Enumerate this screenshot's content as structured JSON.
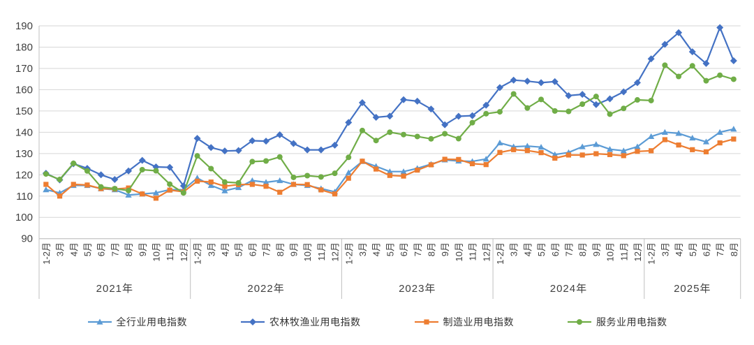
{
  "chart_data": {
    "type": "line",
    "title": "",
    "xlabel": "",
    "ylabel": "",
    "ylim": [
      90,
      190
    ],
    "yticks": [
      90,
      100,
      110,
      120,
      130,
      140,
      150,
      160,
      170,
      180,
      190
    ],
    "grid": "horizontal",
    "legend_position": "bottom",
    "years": [
      {
        "label": "2021年",
        "months": [
          "1-2月",
          "3月",
          "4月",
          "5月",
          "6月",
          "7月",
          "8月",
          "9月",
          "10月",
          "11月",
          "12月"
        ]
      },
      {
        "label": "2022年",
        "months": [
          "1-2月",
          "3月",
          "4月",
          "5月",
          "6月",
          "7月",
          "8月",
          "9月",
          "10月",
          "11月",
          "12月"
        ]
      },
      {
        "label": "2023年",
        "months": [
          "1-2月",
          "3月",
          "4月",
          "5月",
          "6月",
          "7月",
          "8月",
          "9月",
          "10月",
          "11月",
          "12月"
        ]
      },
      {
        "label": "2024年",
        "months": [
          "1-2月",
          "3月",
          "4月",
          "5月",
          "6月",
          "7月",
          "8月",
          "9月",
          "10月",
          "11月",
          "12月"
        ]
      },
      {
        "label": "2025年",
        "months": [
          "1-2月",
          "3月",
          "4月",
          "5月",
          "6月",
          "7月",
          "8月"
        ]
      }
    ],
    "series": [
      {
        "name": "全行业用电指数",
        "color": "#5B9BD5",
        "marker": "triangle",
        "values": [
          113,
          111.5,
          115,
          115,
          113.5,
          113,
          110.5,
          111,
          111.5,
          113,
          113,
          118.5,
          115,
          112.5,
          114,
          117.3,
          116.5,
          117.3,
          115.5,
          115,
          113.5,
          112,
          121,
          126.3,
          124,
          121.5,
          121.5,
          123,
          125,
          127,
          126.5,
          126.3,
          127.4,
          135,
          133.2,
          133.5,
          133,
          129.5,
          130.5,
          133.2,
          134.3,
          132,
          131.3,
          133.2,
          138,
          140,
          139.5,
          137.3,
          135.5,
          140,
          141.5
        ]
      },
      {
        "name": "农林牧渔业用电指数",
        "color": "#4472C4",
        "marker": "diamond",
        "values": [
          120.7,
          117.6,
          125.2,
          123,
          120,
          117.8,
          121.8,
          126.8,
          123.7,
          123.5,
          114.8,
          137.1,
          132.8,
          131.2,
          131.4,
          136,
          135.8,
          138.8,
          134.7,
          131.7,
          131.7,
          133.9,
          144.6,
          153.9,
          147,
          147.6,
          155.3,
          154.6,
          150.9,
          143.5,
          147.5,
          147.8,
          152.7,
          161,
          164.5,
          164,
          163.3,
          163.8,
          157.2,
          157.8,
          153,
          155.7,
          159,
          163.3,
          174.5,
          181.3,
          186.8,
          177.8,
          172.3,
          189.2,
          173.6
        ]
      },
      {
        "name": "制造业用电指数",
        "color": "#ED7D31",
        "marker": "square",
        "values": [
          115.5,
          110,
          115.5,
          115.2,
          113.5,
          113.3,
          113.8,
          111,
          109,
          112.8,
          112,
          117,
          116.6,
          114.6,
          115.4,
          115.5,
          114.6,
          111.8,
          115.5,
          115.4,
          112.9,
          111,
          118.4,
          126.4,
          122.7,
          119.7,
          119.4,
          122.2,
          124.7,
          127.3,
          127.2,
          125.2,
          124.8,
          130.5,
          131.8,
          131.4,
          130.4,
          127.8,
          129.3,
          129.3,
          129.9,
          129.5,
          129,
          131,
          131.3,
          136.5,
          134,
          131.8,
          130.8,
          135,
          136.8
        ]
      },
      {
        "name": "服务业用电指数",
        "color": "#70AD47",
        "marker": "circle",
        "values": [
          120.4,
          117.8,
          125.4,
          121.8,
          114.3,
          113.5,
          112.6,
          122.4,
          121.9,
          115.6,
          111.5,
          128.9,
          122.9,
          116.6,
          116.2,
          126.2,
          126.5,
          128.4,
          118.8,
          119.6,
          119,
          120.7,
          128.2,
          140.8,
          136.1,
          140,
          138.9,
          138,
          136.9,
          139.3,
          137,
          144.5,
          148.7,
          149.6,
          158,
          151.4,
          155.4,
          150,
          149.8,
          153.2,
          156.8,
          148.5,
          151.2,
          155.2,
          154.9,
          171.5,
          166.2,
          171.2,
          164.2,
          166.8,
          164.9
        ]
      }
    ],
    "style": {
      "gridline_color": "#D6D6D6",
      "axis_line_color": "#BFBFBF",
      "separator_color": "#BFBFBF",
      "background": "#FFFFFF"
    }
  }
}
